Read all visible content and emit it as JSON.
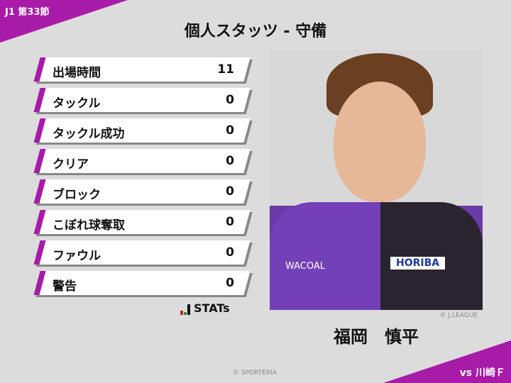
{
  "header": {
    "round": "J1 第33節",
    "title": "個人スタッツ - 守備"
  },
  "stats": [
    {
      "label": "出場時間",
      "value": "11"
    },
    {
      "label": "タックル",
      "value": "0"
    },
    {
      "label": "タックル成功",
      "value": "0"
    },
    {
      "label": "クリア",
      "value": "0"
    },
    {
      "label": "ブロック",
      "value": "0"
    },
    {
      "label": "こぼれ球奪取",
      "value": "0"
    },
    {
      "label": "ファウル",
      "value": "0"
    },
    {
      "label": "警告",
      "value": "0"
    }
  ],
  "logo": {
    "text": "STATs"
  },
  "player": {
    "name": "福岡　慎平",
    "photo_credit": "© J.LEAGUE",
    "shirt_sponsor": "HORIBA",
    "shirt_brand": "WACOAL"
  },
  "footer": {
    "credit": "© SPORTERIA",
    "opponent": "vs 川崎Ｆ"
  },
  "colors": {
    "accent": "#a81aa8",
    "background": "#dcdcdc"
  }
}
